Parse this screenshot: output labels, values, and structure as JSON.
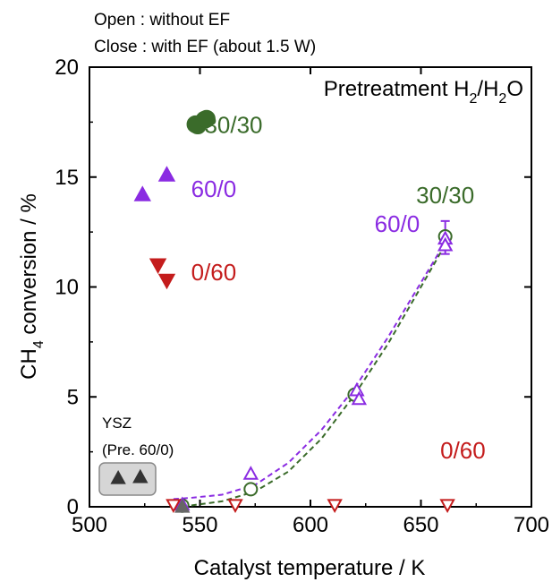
{
  "chart_data": {
    "type": "scatter",
    "notes": [
      "Open : without EF",
      "Close : with EF (about 1.5 W)"
    ],
    "xlabel": "Catalyst temperature / K",
    "ylabel_main": "CH",
    "ylabel_sub": "4",
    "ylabel_rest": " conversion / %",
    "xlim": [
      500,
      700
    ],
    "ylim": [
      0,
      20
    ],
    "x_ticks": [
      500,
      550,
      600,
      650,
      700
    ],
    "y_ticks": [
      0,
      5,
      10,
      15,
      20
    ],
    "legend_title": {
      "main": "Pretreatment H",
      "sub1": "2",
      "mid": "/H",
      "sub2": "2",
      "end": "O"
    },
    "colors": {
      "green": "#3a6b2a",
      "purple": "#8a2be2",
      "red": "#c41c1c",
      "gray": "#555555"
    },
    "series": [
      {
        "name": "30/30",
        "marker": "circle",
        "filled": true,
        "color": "#3a6b2a",
        "points": [
          [
            548,
            17.4
          ],
          [
            549,
            17.35
          ],
          [
            552,
            17.6
          ],
          [
            553,
            17.65
          ]
        ]
      },
      {
        "name": "60/0",
        "marker": "triangle-up",
        "filled": true,
        "color": "#8a2be2",
        "points": [
          [
            524,
            14.2
          ],
          [
            535,
            15.1
          ]
        ]
      },
      {
        "name": "0/60",
        "marker": "triangle-down",
        "filled": true,
        "color": "#c41c1c",
        "points": [
          [
            531,
            11.0
          ],
          [
            535,
            10.3
          ]
        ]
      },
      {
        "name": "30/30",
        "marker": "circle",
        "filled": false,
        "color": "#3a6b2a",
        "points": [
          [
            542,
            0.05
          ],
          [
            573,
            0.8
          ],
          [
            620,
            5.1
          ],
          [
            661,
            12.3
          ]
        ]
      },
      {
        "name": "60/0",
        "marker": "triangle-up",
        "filled": false,
        "color": "#8a2be2",
        "points": [
          [
            542,
            0.1
          ],
          [
            573,
            1.5
          ],
          [
            621,
            5.3
          ],
          [
            622,
            4.9
          ],
          [
            661,
            12.2
          ],
          [
            661,
            11.9
          ]
        ]
      },
      {
        "name": "0/60",
        "marker": "triangle-down",
        "filled": false,
        "color": "#c41c1c",
        "points": [
          [
            538,
            0.0
          ],
          [
            566,
            0.0
          ],
          [
            611,
            0.0
          ],
          [
            662,
            0.0
          ]
        ]
      },
      {
        "name": "YSZ (Pre. 60/0)",
        "marker": "triangle-up",
        "filled": true,
        "color": "#333333",
        "points": [
          [
            542,
            0.0
          ]
        ]
      }
    ],
    "fit_curves": [
      {
        "color": "#8a2be2",
        "x": [
          538,
          545,
          560,
          575,
          590,
          605,
          620,
          635,
          650,
          662
        ],
        "y": [
          0.35,
          0.4,
          0.55,
          1.0,
          2.0,
          3.5,
          5.4,
          7.7,
          10.2,
          12.2
        ]
      },
      {
        "color": "#3a6b2a",
        "x": [
          538,
          545,
          560,
          575,
          590,
          605,
          620,
          635,
          650,
          662
        ],
        "y": [
          0.0,
          0.05,
          0.25,
          0.7,
          1.6,
          3.1,
          5.1,
          7.4,
          10.0,
          12.1
        ]
      }
    ],
    "annotations": [
      {
        "text": "30/30",
        "x": 552,
        "y": 17.0,
        "color": "#3a6b2a"
      },
      {
        "text": "60/0",
        "x": 546,
        "y": 14.1,
        "color": "#8a2be2"
      },
      {
        "text": "0/60",
        "x": 546,
        "y": 10.3,
        "color": "#c41c1c"
      },
      {
        "text": "30/30",
        "x": 661,
        "y": 13.8,
        "color": "#3a6b2a"
      },
      {
        "text": "60/0",
        "x": 629,
        "y": 12.5,
        "color": "#8a2be2"
      },
      {
        "text": "0/60",
        "x": 669,
        "y": 2.2,
        "color": "#c41c1c"
      }
    ],
    "ysz_label": [
      "YSZ",
      "(Pre. 60/0)"
    ],
    "ysz_box_markers": [
      {
        "x": 513,
        "y": 1.3
      },
      {
        "x": 523,
        "y": 1.35
      }
    ],
    "error_bars": [
      {
        "x": 661,
        "y_low": 11.5,
        "y_high": 13.0,
        "color": "#8a2be2"
      }
    ]
  }
}
